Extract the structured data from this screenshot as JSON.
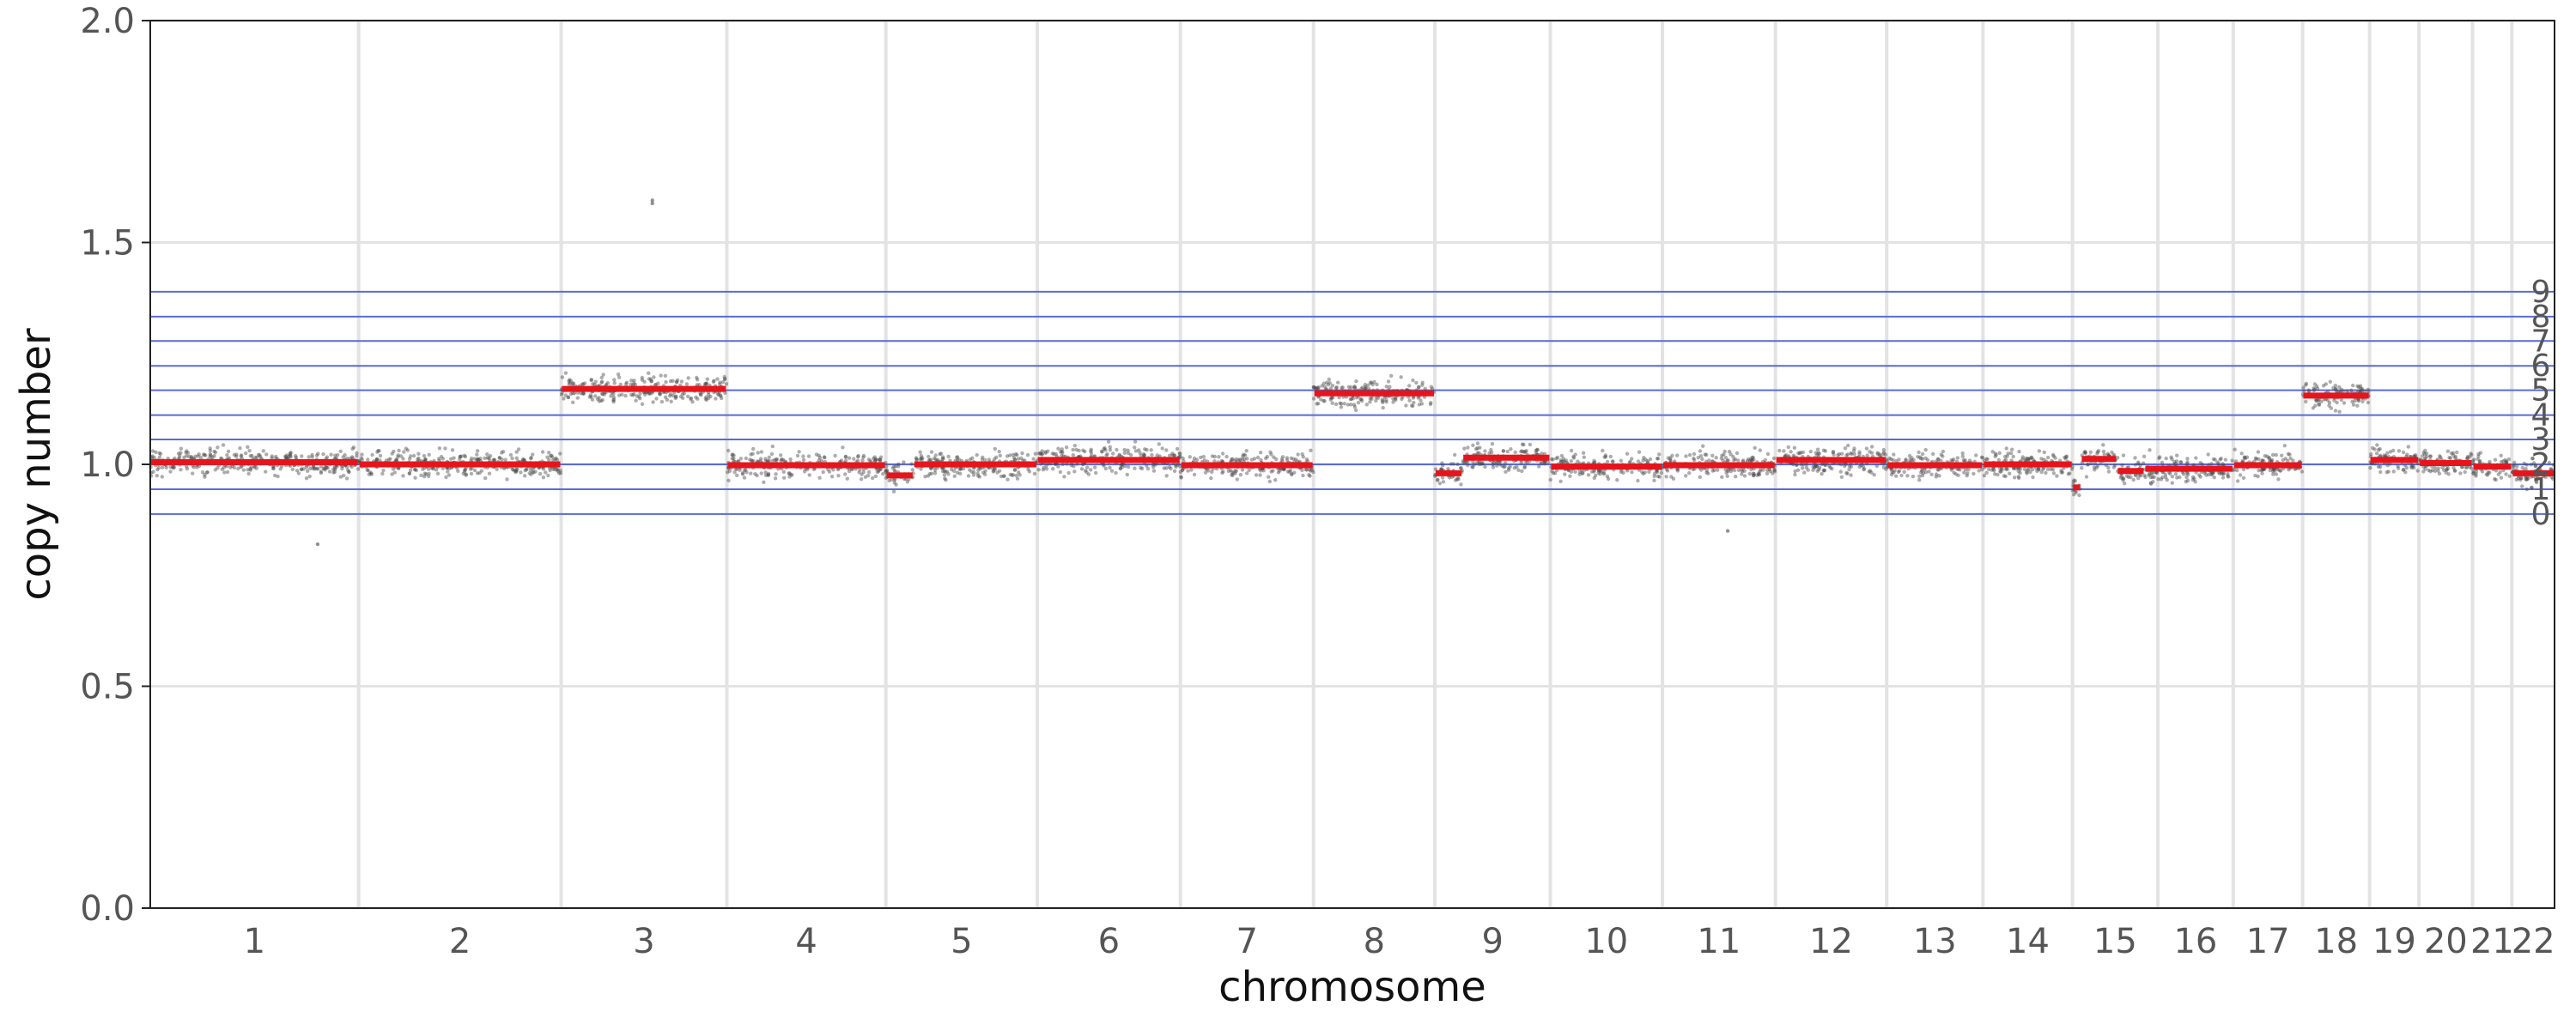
{
  "chart_data": {
    "type": "scatter",
    "xlabel": "chromosome",
    "ylabel": "copy number",
    "ylim": [
      0.0,
      2.0
    ],
    "yticks": [
      "0.0",
      "0.5",
      "1.0",
      "1.5",
      "2.0"
    ],
    "grid": "horizontal at y ticks; vertical at chromosome boundaries",
    "colors": {
      "points": "#4a4a4a",
      "segments": "#e8141c",
      "state_lines": "#5a6ad8",
      "grid": "#e3e3e3",
      "axis": "#222222"
    },
    "chromosomes": [
      {
        "label": "1",
        "start": 0.0,
        "end": 249.0
      },
      {
        "label": "2",
        "start": 249.0,
        "end": 491.0
      },
      {
        "label": "3",
        "start": 491.0,
        "end": 689.0
      },
      {
        "label": "4",
        "start": 689.0,
        "end": 879.0
      },
      {
        "label": "5",
        "start": 879.0,
        "end": 1060.0
      },
      {
        "label": "6",
        "start": 1060.0,
        "end": 1231.0
      },
      {
        "label": "7",
        "start": 1231.0,
        "end": 1390.0
      },
      {
        "label": "8",
        "start": 1390.0,
        "end": 1535.0
      },
      {
        "label": "9",
        "start": 1535.0,
        "end": 1673.0
      },
      {
        "label": "10",
        "start": 1673.0,
        "end": 1807.0
      },
      {
        "label": "11",
        "start": 1807.0,
        "end": 1942.0
      },
      {
        "label": "12",
        "start": 1942.0,
        "end": 2075.0
      },
      {
        "label": "13",
        "start": 2075.0,
        "end": 2190.0
      },
      {
        "label": "14",
        "start": 2190.0,
        "end": 2297.0
      },
      {
        "label": "15",
        "start": 2297.0,
        "end": 2399.0
      },
      {
        "label": "16",
        "start": 2399.0,
        "end": 2489.0
      },
      {
        "label": "17",
        "start": 2489.0,
        "end": 2572.0
      },
      {
        "label": "18",
        "start": 2572.0,
        "end": 2652.0
      },
      {
        "label": "19",
        "start": 2652.0,
        "end": 2711.0
      },
      {
        "label": "20",
        "start": 2711.0,
        "end": 2775.0
      },
      {
        "label": "21",
        "start": 2775.0,
        "end": 2822.0
      },
      {
        "label": "22",
        "start": 2822.0,
        "end": 2873.0
      }
    ],
    "segments": [
      {
        "start": 0.0,
        "end": 249.0,
        "value": 1.005
      },
      {
        "start": 249.0,
        "end": 491.0,
        "value": 1.0
      },
      {
        "start": 491.0,
        "end": 689.0,
        "value": 1.17
      },
      {
        "start": 689.0,
        "end": 879.0,
        "value": 0.998
      },
      {
        "start": 879.0,
        "end": 912.0,
        "value": 0.975
      },
      {
        "start": 912.0,
        "end": 1060.0,
        "value": 1.0
      },
      {
        "start": 1060.0,
        "end": 1231.0,
        "value": 1.01
      },
      {
        "start": 1231.0,
        "end": 1390.0,
        "value": 0.998
      },
      {
        "start": 1390.0,
        "end": 1535.0,
        "value": 1.16
      },
      {
        "start": 1535.0,
        "end": 1568.0,
        "value": 0.98
      },
      {
        "start": 1568.0,
        "end": 1673.0,
        "value": 1.015
      },
      {
        "start": 1673.0,
        "end": 1807.0,
        "value": 0.995
      },
      {
        "start": 1807.0,
        "end": 1942.0,
        "value": 0.998
      },
      {
        "start": 1942.0,
        "end": 2075.0,
        "value": 1.01
      },
      {
        "start": 2075.0,
        "end": 2190.0,
        "value": 0.998
      },
      {
        "start": 2190.0,
        "end": 2297.0,
        "value": 1.0
      },
      {
        "start": 2297.0,
        "end": 2307.0,
        "value": 0.948
      },
      {
        "start": 2307.0,
        "end": 2350.0,
        "value": 1.012
      },
      {
        "start": 2350.0,
        "end": 2383.0,
        "value": 0.985
      },
      {
        "start": 2383.0,
        "end": 2489.0,
        "value": 0.99
      },
      {
        "start": 2489.0,
        "end": 2572.0,
        "value": 0.998
      },
      {
        "start": 2572.0,
        "end": 2652.0,
        "value": 1.155
      },
      {
        "start": 2652.0,
        "end": 2711.0,
        "value": 1.01
      },
      {
        "start": 2711.0,
        "end": 2775.0,
        "value": 1.003
      },
      {
        "start": 2775.0,
        "end": 2822.0,
        "value": 0.995
      },
      {
        "start": 2822.0,
        "end": 2873.0,
        "value": 0.98
      }
    ],
    "copy_number_states": [
      {
        "label": "0",
        "value": 0.888
      },
      {
        "label": "1",
        "value": 0.944
      },
      {
        "label": "2",
        "value": 1.0
      },
      {
        "label": "3",
        "value": 1.056
      },
      {
        "label": "4",
        "value": 1.111
      },
      {
        "label": "5",
        "value": 1.167
      },
      {
        "label": "6",
        "value": 1.222
      },
      {
        "label": "7",
        "value": 1.278
      },
      {
        "label": "8",
        "value": 1.333
      },
      {
        "label": "9",
        "value": 1.389
      }
    ],
    "points": "about 30 noisy read-depth bins per chromosome scattered around each segment value (spread about +/-0.04), plus outliers near 1.59 (chr 3) and near 0.82-0.85 (chr 1, chr 11)"
  }
}
